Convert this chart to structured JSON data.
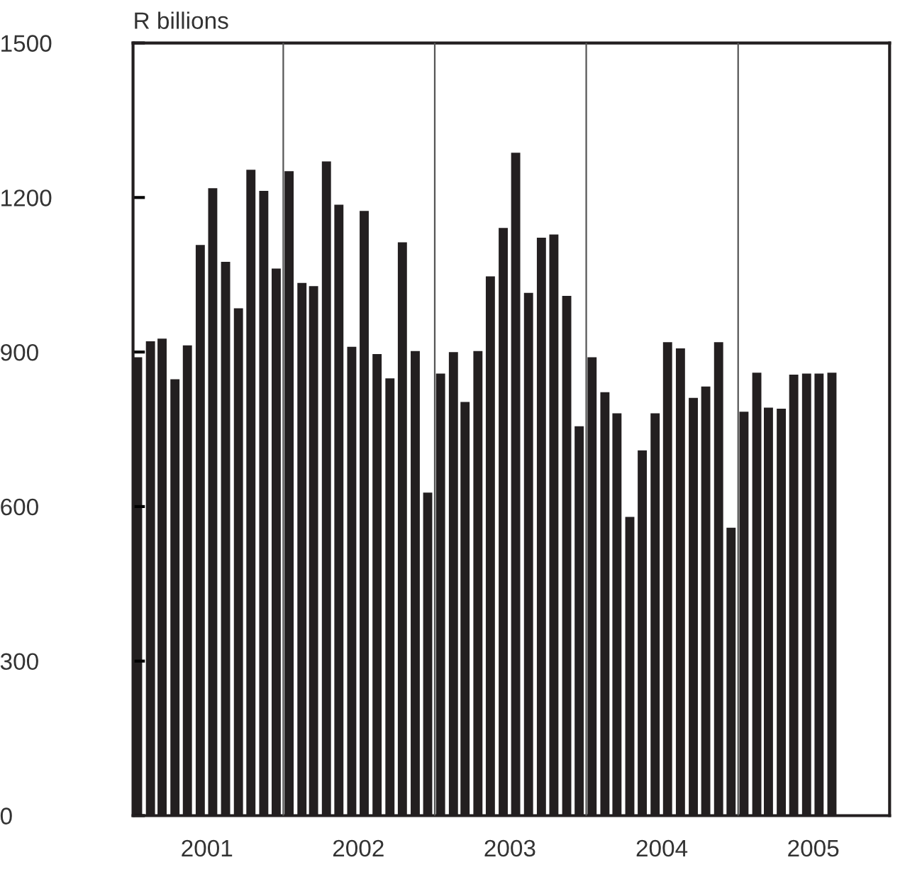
{
  "chart_data": {
    "type": "bar",
    "ylabel": "R billions",
    "x": [
      "2001-01-15",
      "2001-02-15",
      "2001-03-15",
      "2001-04-15",
      "2001-05-15",
      "2001-06-15",
      "2001-07-15",
      "2001-08-15",
      "2001-09-15",
      "2001-10-15",
      "2001-11-15",
      "2001-12-15",
      "2002-01-15",
      "2002-02-15",
      "2002-03-15",
      "2002-04-15",
      "2002-05-15",
      "2002-06-15",
      "2002-07-15",
      "2002-08-15",
      "2002-09-15",
      "2002-10-15",
      "2002-11-15",
      "2002-12-15",
      "2003-01-15",
      "2003-02-15",
      "2003-03-15",
      "2003-04-15",
      "2003-05-15",
      "2003-06-15",
      "2003-07-15",
      "2003-08-15",
      "2003-09-15",
      "2003-10-15",
      "2003-11-15",
      "2003-12-15",
      "2004-01-15",
      "2004-02-15",
      "2004-03-15",
      "2004-04-15",
      "2004-05-15",
      "2004-06-15",
      "2004-07-15",
      "2004-08-15",
      "2004-09-15",
      "2004-10-15",
      "2004-11-15",
      "2004-12-15",
      "2005-01-15",
      "2005-02-15",
      "2005-03-15",
      "2005-04-15",
      "2005-05-15",
      "2005-06-15",
      "2005-07-15",
      "2005-08-15"
    ],
    "values": [
      890,
      921,
      926,
      847,
      913,
      1108,
      1218,
      1075,
      985,
      1254,
      1213,
      1062,
      1251,
      1034,
      1028,
      1270,
      1186,
      910,
      1174,
      896,
      849,
      1113,
      902,
      627,
      858,
      900,
      803,
      902,
      1047,
      1141,
      1287,
      1015,
      1122,
      1128,
      1009,
      756,
      890,
      822,
      781,
      580,
      709,
      781,
      919,
      907,
      811,
      833,
      919,
      559,
      784,
      860,
      792,
      790,
      856,
      858,
      858,
      860
    ],
    "color": "#231f20",
    "xlim": [
      "2001-01-04",
      "2006-01-01"
    ],
    "xticks": [
      {
        "value": "2001-07",
        "label": "2001"
      },
      {
        "value": "2002-07",
        "label": "2002"
      },
      {
        "value": "2003-07",
        "label": "2003"
      },
      {
        "value": "2004-07",
        "label": "2004"
      },
      {
        "value": "2005-07",
        "label": "2005"
      }
    ],
    "ylim": [
      0,
      1500
    ],
    "yticks": [
      0,
      300,
      600,
      900,
      1200,
      1500
    ],
    "ref_lines": [
      {
        "axis": "x",
        "value": "2002-01",
        "color": "#555555"
      },
      {
        "axis": "x",
        "value": "2003-01",
        "color": "#555555"
      },
      {
        "axis": "x",
        "value": "2004-01",
        "color": "#555555"
      },
      {
        "axis": "x",
        "value": "2005-01",
        "color": "#555555"
      }
    ],
    "grid": false,
    "legend": false
  }
}
